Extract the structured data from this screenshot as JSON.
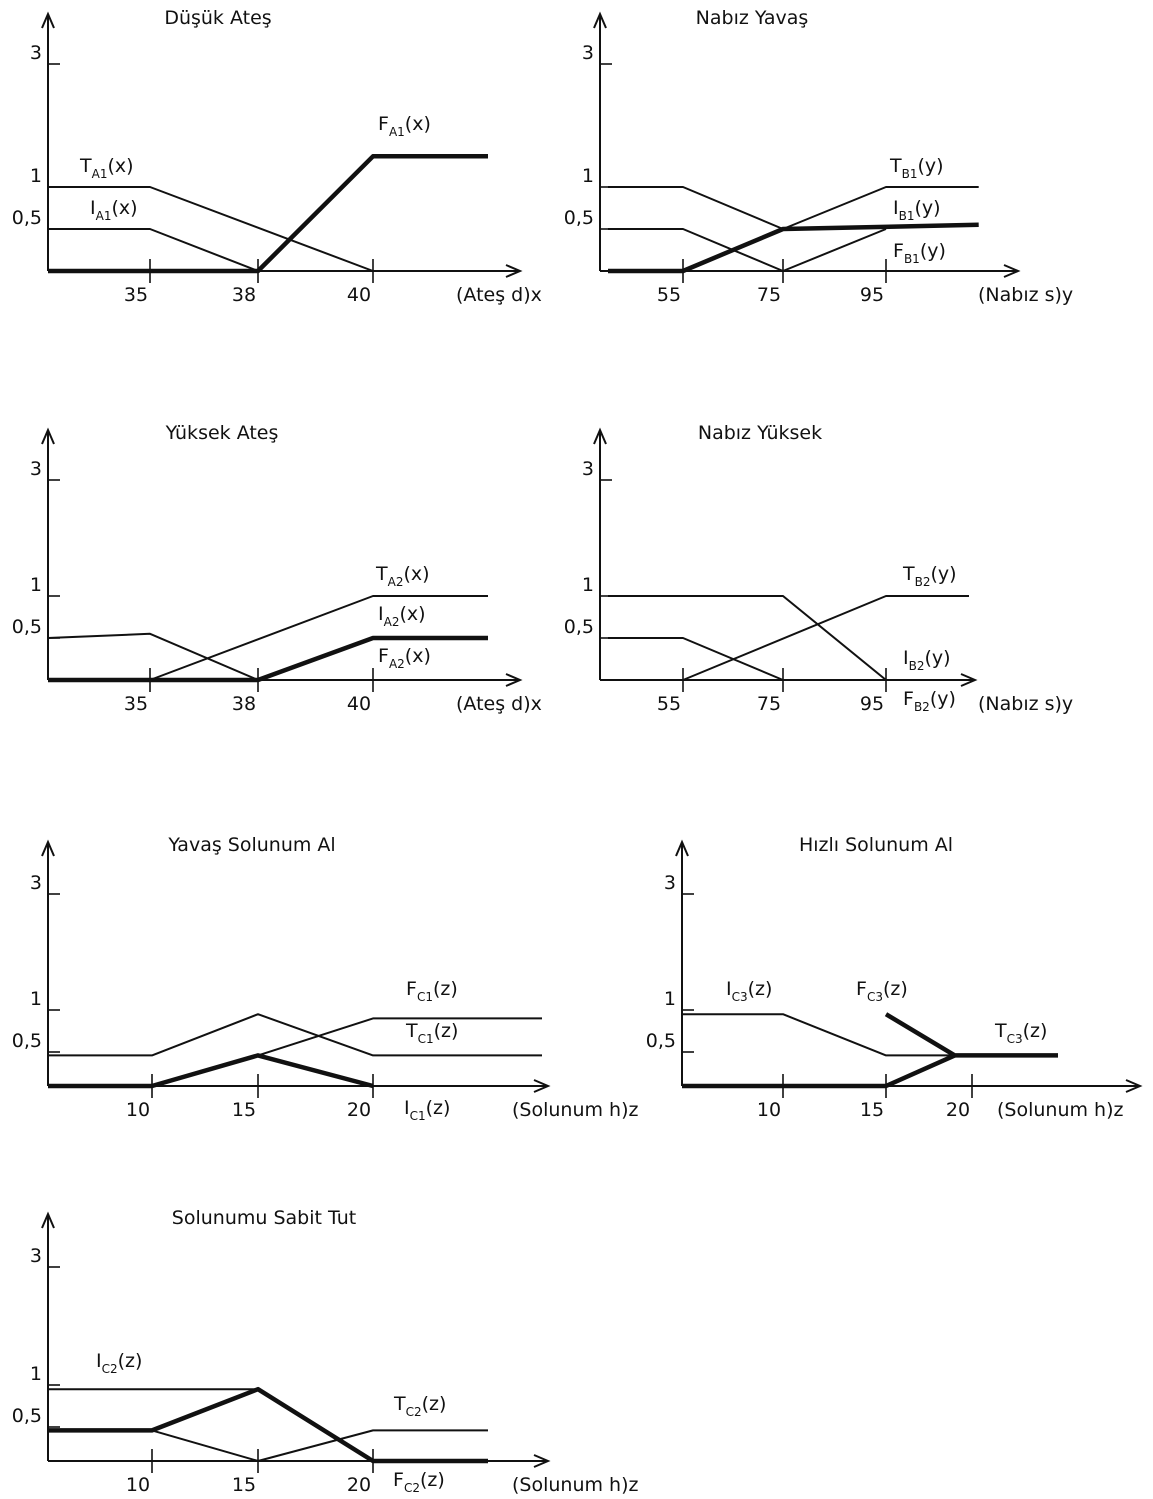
{
  "chart_data": [
    {
      "type": "line",
      "title": "Düşük Ateş",
      "xlabel": "(Ateş d)x",
      "x_ticks": [
        "35",
        "38",
        "40"
      ],
      "y_ticks": [
        "3",
        "1",
        "0,5"
      ],
      "series": [
        {
          "name": "T",
          "sub": "A1",
          "arg": "(x)",
          "weight": "thin",
          "points": [
            [
              32,
              1
            ],
            [
              35,
              1
            ],
            [
              40,
              0
            ]
          ]
        },
        {
          "name": "I",
          "sub": "A1",
          "arg": "(x)",
          "weight": "thin",
          "points": [
            [
              32,
              0.5
            ],
            [
              35,
              0.5
            ],
            [
              38,
              0
            ]
          ]
        },
        {
          "name": "F",
          "sub": "A1",
          "arg": "(x)",
          "weight": "thick",
          "points": [
            [
              32,
              0
            ],
            [
              38,
              0
            ],
            [
              40,
              1.5
            ],
            [
              42,
              1.5
            ]
          ]
        }
      ]
    },
    {
      "type": "line",
      "title": "Nabız Yavaş",
      "xlabel": "(Nabız s)y",
      "x_ticks": [
        "55",
        "75",
        "95"
      ],
      "y_ticks": [
        "3",
        "1",
        "0,5"
      ],
      "series": [
        {
          "name": "T",
          "sub": "B1",
          "arg": "(y)",
          "weight": "thin",
          "points": [
            [
              40,
              1
            ],
            [
              55,
              1
            ],
            [
              75,
              0.5
            ],
            [
              95,
              1
            ],
            [
              113,
              1
            ]
          ]
        },
        {
          "name": "I",
          "sub": "B1",
          "arg": "(y)",
          "weight": "thick",
          "points": [
            [
              40,
              0
            ],
            [
              55,
              0
            ],
            [
              75,
              0.5
            ],
            [
              113,
              0.55
            ]
          ]
        },
        {
          "name": "F",
          "sub": "B1",
          "arg": "(y)",
          "weight": "thin",
          "points": [
            [
              40,
              0.5
            ],
            [
              55,
              0.5
            ],
            [
              75,
              0
            ],
            [
              95,
              0.5
            ]
          ]
        }
      ]
    },
    {
      "type": "line",
      "title": "Yüksek Ateş",
      "xlabel": "(Ateş d)x",
      "x_ticks": [
        "35",
        "38",
        "40"
      ],
      "y_ticks": [
        "3",
        "1",
        "0,5"
      ],
      "series": [
        {
          "name": "T",
          "sub": "A2",
          "arg": "(x)",
          "weight": "thin",
          "points": [
            [
              32,
              0
            ],
            [
              35,
              0
            ],
            [
              40,
              1
            ],
            [
              42,
              1
            ]
          ]
        },
        {
          "name": "I",
          "sub": "A2",
          "arg": "(x)",
          "weight": "thin",
          "points": [
            [
              32,
              0.5
            ],
            [
              35,
              0.55
            ],
            [
              38,
              0
            ]
          ]
        },
        {
          "name": "F",
          "sub": "A2",
          "arg": "(x)",
          "weight": "thick",
          "points": [
            [
              32,
              0
            ],
            [
              38,
              0
            ],
            [
              40,
              0.5
            ],
            [
              42,
              0.5
            ]
          ]
        }
      ]
    },
    {
      "type": "line",
      "title": "Nabız Yüksek",
      "xlabel": "(Nabız s)y",
      "x_ticks": [
        "55",
        "75",
        "95"
      ],
      "y_ticks": [
        "3",
        "1",
        "0,5"
      ],
      "series": [
        {
          "name": "T",
          "sub": "B2",
          "arg": "(y)",
          "weight": "thin",
          "points": [
            [
              40,
              0
            ],
            [
              55,
              0
            ],
            [
              95,
              1
            ],
            [
              113,
              1
            ]
          ]
        },
        {
          "name": "I",
          "sub": "B2",
          "arg": "(y)",
          "weight": "thin",
          "points": [
            [
              40,
              1
            ],
            [
              75,
              1
            ],
            [
              95,
              0
            ]
          ]
        },
        {
          "name": "F",
          "sub": "B2",
          "arg": "(y)",
          "weight": "thin",
          "points": [
            [
              40,
              0.5
            ],
            [
              55,
              0.5
            ],
            [
              75,
              0
            ],
            [
              95,
              0
            ]
          ]
        }
      ]
    },
    {
      "type": "line",
      "title": "Yavaş Solunum Al",
      "xlabel": "(Solunum h)z",
      "x_ticks": [
        "10",
        "15",
        "20"
      ],
      "y_ticks": [
        "3",
        "1",
        "0,5"
      ],
      "series": [
        {
          "name": "F",
          "sub": "C1",
          "arg": "(z)",
          "weight": "thin",
          "points": [
            [
              5,
              0
            ],
            [
              10,
              0
            ],
            [
              15,
              0.45
            ],
            [
              20,
              0.9
            ],
            [
              28,
              0.9
            ]
          ]
        },
        {
          "name": "T",
          "sub": "C1",
          "arg": "(z)",
          "weight": "thin",
          "points": [
            [
              5,
              0.45
            ],
            [
              10,
              0.45
            ],
            [
              15,
              0.95
            ],
            [
              20,
              0.45
            ],
            [
              28,
              0.45
            ]
          ]
        },
        {
          "name": "I",
          "sub": "C1",
          "arg": "(z)",
          "weight": "thick",
          "points": [
            [
              5,
              0
            ],
            [
              10,
              0
            ],
            [
              15,
              0.45
            ],
            [
              20,
              0
            ]
          ]
        }
      ]
    },
    {
      "type": "line",
      "title": "Hızlı Solunum Al",
      "xlabel": "(Solunum h)z",
      "x_ticks": [
        "10",
        "15",
        "20"
      ],
      "y_ticks": [
        "3",
        "1",
        "0,5"
      ],
      "series": [
        {
          "name": "I",
          "sub": "C3",
          "arg": "(z)",
          "weight": "thin",
          "points": [
            [
              5,
              0.95
            ],
            [
              10,
              0.95
            ],
            [
              15,
              0.45
            ],
            [
              19,
              0.45
            ]
          ]
        },
        {
          "name": "F",
          "sub": "C3",
          "arg": "(z)",
          "weight": "thick",
          "points": [
            [
              15,
              0.95
            ],
            [
              19,
              0.45
            ],
            [
              25,
              0.45
            ]
          ]
        },
        {
          "name": "T",
          "sub": "C3",
          "arg": "(z)",
          "weight": "thick",
          "points": [
            [
              5,
              0
            ],
            [
              15,
              0
            ],
            [
              19,
              0.45
            ]
          ]
        }
      ]
    },
    {
      "type": "line",
      "title": "Solunumu Sabit Tut",
      "xlabel": "(Solunum h)z",
      "x_ticks": [
        "10",
        "15",
        "20"
      ],
      "y_ticks": [
        "3",
        "1",
        "0,5"
      ],
      "series": [
        {
          "name": "I",
          "sub": "C2",
          "arg": "(z)",
          "weight": "thin",
          "points": [
            [
              5,
              0.95
            ],
            [
              15,
              0.95
            ]
          ]
        },
        {
          "name": "T",
          "sub": "C2",
          "arg": "(z)",
          "weight": "thin",
          "points": [
            [
              5,
              0.45
            ],
            [
              10,
              0.45
            ],
            [
              15,
              0
            ],
            [
              20,
              0.45
            ],
            [
              25,
              0.45
            ]
          ]
        },
        {
          "name": "F",
          "sub": "C2",
          "arg": "(z)",
          "weight": "thick",
          "points": [
            [
              5,
              0.45
            ],
            [
              10,
              0.45
            ],
            [
              15,
              0.95
            ],
            [
              20,
              0
            ],
            [
              25,
              0
            ]
          ]
        }
      ]
    }
  ]
}
